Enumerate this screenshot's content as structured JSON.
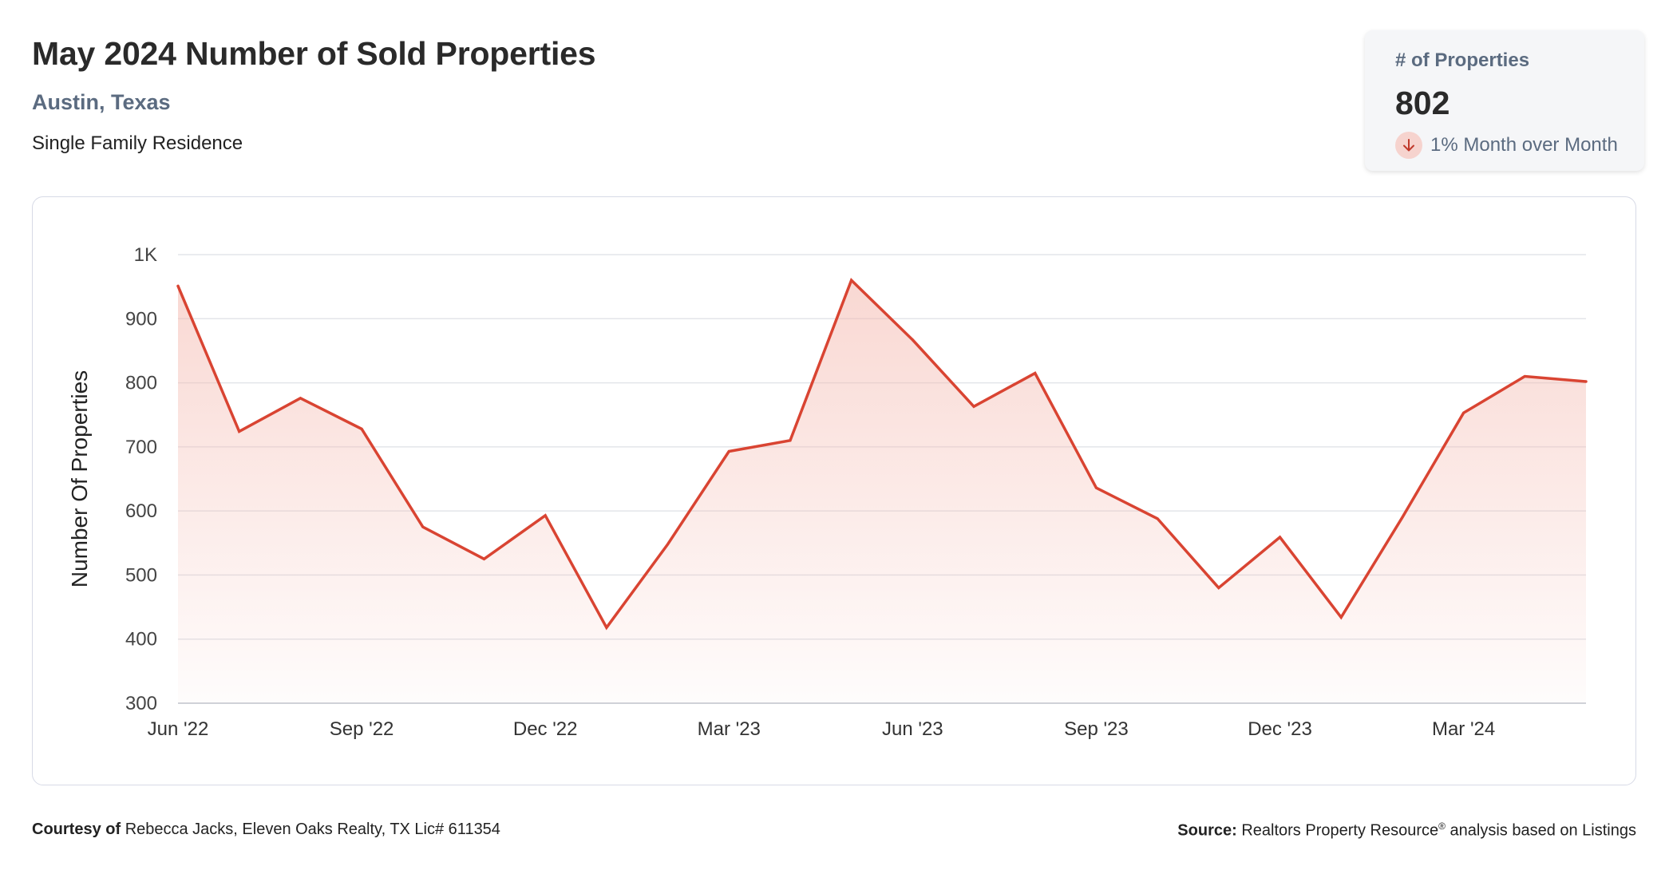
{
  "header": {
    "title": "May 2024 Number of Sold Properties",
    "location": "Austin, Texas",
    "property_type": "Single Family Residence"
  },
  "kpi": {
    "label": "# of Properties",
    "value": "802",
    "change_text": "1% Month over Month",
    "direction": "down",
    "arrow_color": "#c0392b",
    "arrow_bg": "#f6d3ce"
  },
  "chart_data": {
    "type": "area",
    "title": "",
    "xlabel": "",
    "ylabel": "Number Of Properties",
    "x": [
      "Jun '22",
      "Jul '22",
      "Aug '22",
      "Sep '22",
      "Oct '22",
      "Nov '22",
      "Dec '22",
      "Jan '23",
      "Feb '23",
      "Mar '23",
      "Apr '23",
      "May '23",
      "Jun '23",
      "Jul '23",
      "Aug '23",
      "Sep '23",
      "Oct '23",
      "Nov '23",
      "Dec '23",
      "Jan '24",
      "Feb '24",
      "Mar '24",
      "Apr '24",
      "May '24"
    ],
    "values": [
      951,
      724,
      776,
      728,
      575,
      525,
      593,
      418,
      548,
      693,
      710,
      960,
      867,
      763,
      815,
      636,
      588,
      480,
      559,
      434,
      590,
      753,
      810,
      802
    ],
    "x_tick_labels": [
      "Jun '22",
      "Sep '22",
      "Dec '22",
      "Mar '23",
      "Jun '23",
      "Sep '23",
      "Dec '23",
      "Mar '24"
    ],
    "y_ticks": [
      {
        "value": 300,
        "label": "300"
      },
      {
        "value": 400,
        "label": "400"
      },
      {
        "value": 500,
        "label": "500"
      },
      {
        "value": 600,
        "label": "600"
      },
      {
        "value": 700,
        "label": "700"
      },
      {
        "value": 800,
        "label": "800"
      },
      {
        "value": 900,
        "label": "900"
      },
      {
        "value": 1000,
        "label": "1K"
      }
    ],
    "ylim": [
      300,
      1000
    ],
    "grid": true,
    "line_color": "#d94432",
    "fill_color": "#f4b8ae",
    "legend": "none"
  },
  "footer": {
    "courtesy_label": "Courtesy of",
    "courtesy_text": "Rebecca Jacks, Eleven Oaks Realty, TX Lic# 611354",
    "source_label": "Source:",
    "source_text_a": "Realtors Property Resource",
    "source_reg": "®",
    "source_text_b": " analysis based on Listings"
  }
}
